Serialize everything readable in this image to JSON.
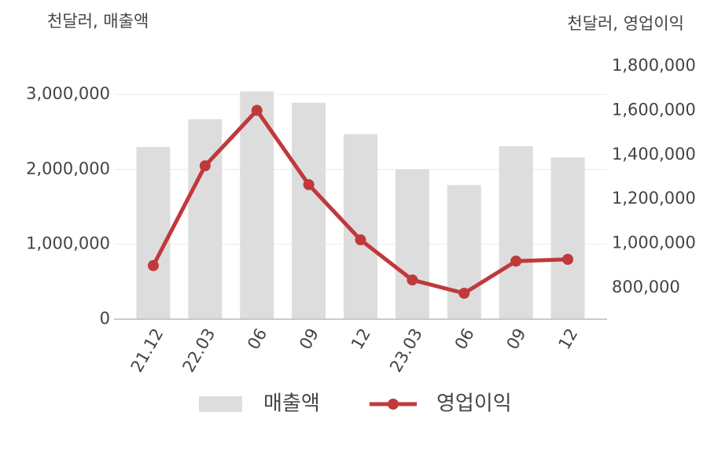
{
  "chart_data": {
    "type": "bar",
    "y_label": "천달러, 매출액",
    "y2_label": "천달러, 영업이익",
    "categories": [
      "21.12",
      "22.03",
      "06",
      "09",
      "12",
      "23.03",
      "06",
      "09",
      "12"
    ],
    "series": [
      {
        "name": "매출액",
        "type": "bar",
        "color": "#dddddd",
        "values": [
          2300000,
          2670000,
          3040000,
          2890000,
          2470000,
          2000000,
          1790000,
          2310000,
          2160000
        ]
      },
      {
        "name": "영업이익",
        "type": "line",
        "axis": "y2",
        "color": "#c0393b",
        "values": [
          900000,
          1350000,
          1600000,
          1265000,
          1016000,
          835000,
          775000,
          920000,
          928000
        ]
      }
    ],
    "ylim": [
      0,
      3380000
    ],
    "yticks": [
      0,
      {
        "value": 1000000,
        "label": "1,000,000"
      },
      {
        "value": 2000000,
        "label": "2,000,000"
      },
      {
        "value": 3000000,
        "label": "3,000,000"
      }
    ],
    "y2lim": [
      658000,
      1800000
    ],
    "y2ticks": [
      {
        "value": 800000,
        "label": "800,000"
      },
      {
        "value": 1000000,
        "label": "1,000,000"
      },
      {
        "value": 1200000,
        "label": "1,200,000"
      },
      {
        "value": 1400000,
        "label": "1,400,000"
      },
      {
        "value": 1600000,
        "label": "1,600,000"
      },
      {
        "value": 1800000,
        "label": "1,800,000"
      }
    ],
    "grid": true
  }
}
